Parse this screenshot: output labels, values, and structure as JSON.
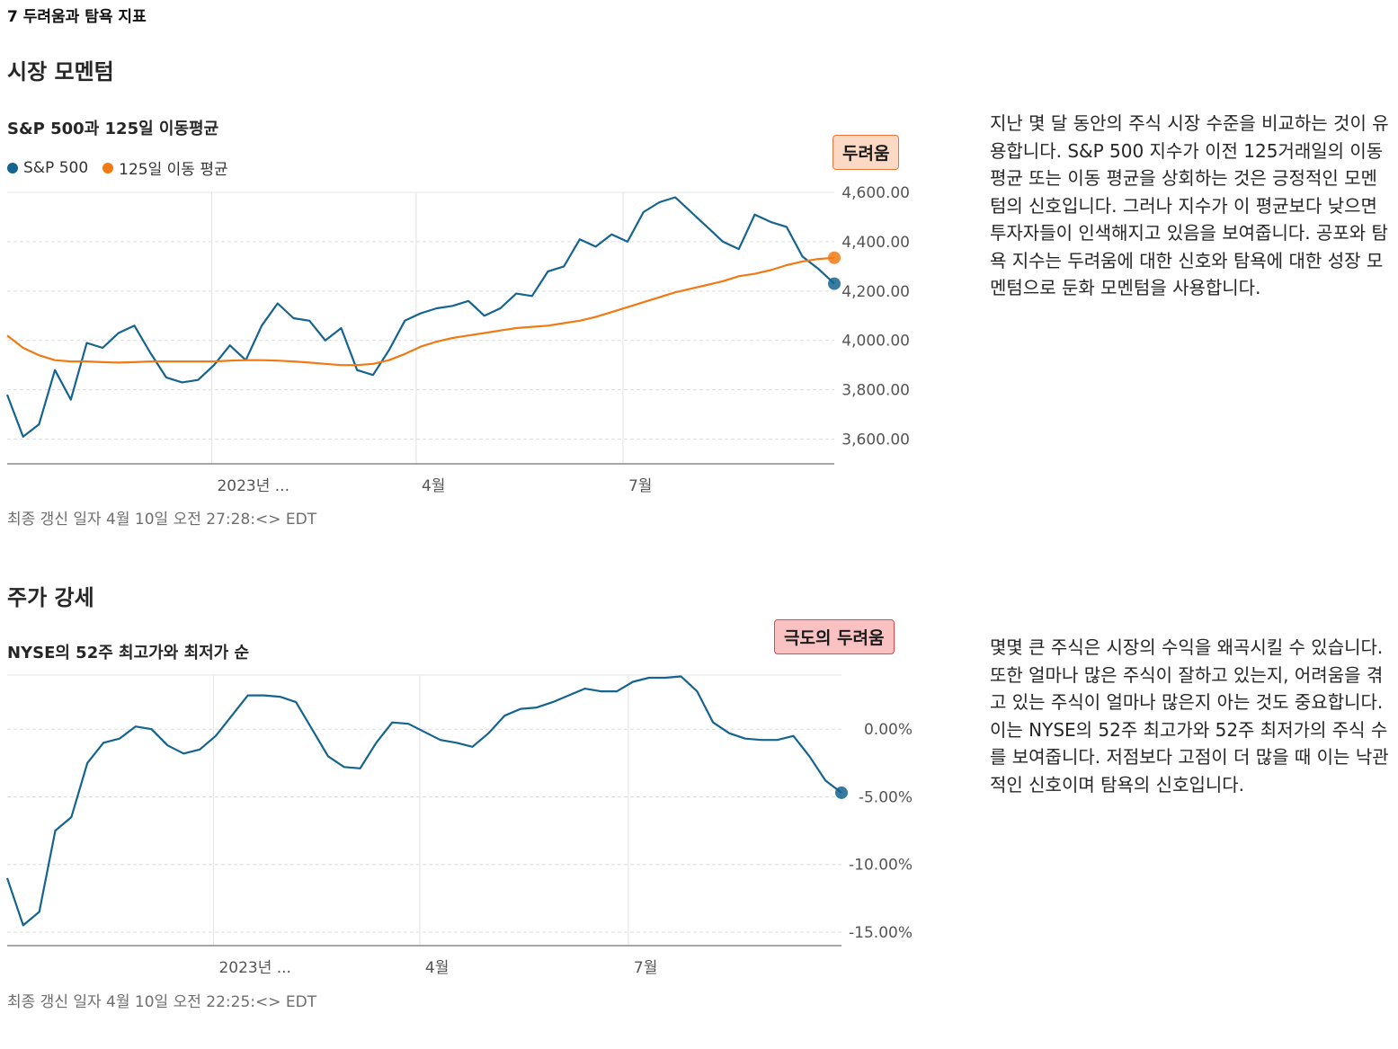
{
  "breadcrumb": "7 두려움과 탐욕 지표",
  "sections": [
    {
      "heading": "시장 모멘텀",
      "chart_title": "S&P 500과 125일 이동평균",
      "badge": {
        "label": "두려움",
        "bg": "#fbd9c4",
        "border": "#e8763a"
      },
      "legend": [
        {
          "label": "S&P 500",
          "color": "#14648f"
        },
        {
          "label": "125일 이동 평균",
          "color": "#f07a14"
        }
      ],
      "updated": "최종 갱신 일자 4월 10일 오전 27:28:<> EDT",
      "description": "지난 몇 달 동안의 주식 시장 수준을 비교하는 것이 유용합니다. S&P 500 지수가 이전 125거래일의 이동 평균 또는 이동 평균을 상회하는 것은 긍정적인 모멘텀의 신호입니다. 그러나 지수가 이 평균보다 낮으면 투자자들이 인색해지고 있음을 보여줍니다. 공포와 탐욕 지수는 두려움에 대한 신호와 탐욕에 대한 성장 모멘텀으로 둔화 모멘텀을 사용합니다."
    },
    {
      "heading": "주가 강세",
      "chart_title": "NYSE의 52주 최고가와 최저가 순",
      "badge": {
        "label": "극도의 두려움",
        "bg": "#f9c1c1",
        "border": "#e04848"
      },
      "updated": "최종 갱신 일자 4월 10일 오전 22:25:<> EDT",
      "description": "몇몇 큰 주식은 시장의 수익을 왜곡시킬 수 있습니다. 또한 얼마나 많은 주식이 잘하고 있는지, 어려움을 겪고 있는 주식이 얼마나 많은지 아는 것도 중요합니다. 이는 NYSE의 52주 최고가와 52주 최저가의 주식 수를 보여줍니다. 저점보다 고점이 더 많을 때 이는 낙관적인 신호이며 탐욕의 신호입니다."
    }
  ],
  "chart_data": [
    {
      "type": "line",
      "x": [
        "2022-10-03",
        "2022-10-10",
        "2022-10-17",
        "2022-10-24",
        "2022-10-31",
        "2022-11-07",
        "2022-11-14",
        "2022-11-21",
        "2022-11-28",
        "2022-12-05",
        "2022-12-12",
        "2022-12-19",
        "2022-12-26",
        "2023-01-02",
        "2023-01-09",
        "2023-01-16",
        "2023-01-23",
        "2023-01-30",
        "2023-02-06",
        "2023-02-13",
        "2023-02-20",
        "2023-02-27",
        "2023-03-06",
        "2023-03-13",
        "2023-03-20",
        "2023-03-27",
        "2023-04-03",
        "2023-04-10",
        "2023-04-17",
        "2023-04-24",
        "2023-05-01",
        "2023-05-08",
        "2023-05-15",
        "2023-05-22",
        "2023-05-29",
        "2023-06-05",
        "2023-06-12",
        "2023-06-19",
        "2023-06-26",
        "2023-07-03",
        "2023-07-10",
        "2023-07-17",
        "2023-07-24",
        "2023-07-31",
        "2023-08-07",
        "2023-08-14",
        "2023-08-21",
        "2023-08-28",
        "2023-09-04",
        "2023-09-11",
        "2023-09-18",
        "2023-09-25",
        "2023-10-02"
      ],
      "series": [
        {
          "name": "S&P 500",
          "color": "#14648f",
          "values": [
            3780,
            3610,
            3660,
            3880,
            3760,
            3990,
            3970,
            4030,
            4060,
            3950,
            3850,
            3830,
            3840,
            3900,
            3980,
            3920,
            4060,
            4150,
            4090,
            4080,
            4000,
            4050,
            3880,
            3860,
            3960,
            4080,
            4110,
            4130,
            4140,
            4160,
            4100,
            4130,
            4190,
            4180,
            4280,
            4300,
            4410,
            4380,
            4430,
            4400,
            4520,
            4560,
            4580,
            4520,
            4460,
            4400,
            4370,
            4510,
            4480,
            4460,
            4340,
            4290,
            4230
          ]
        },
        {
          "name": "125일 이동 평균",
          "color": "#f07a14",
          "values": [
            4020,
            3970,
            3940,
            3920,
            3915,
            3915,
            3912,
            3910,
            3912,
            3915,
            3915,
            3915,
            3915,
            3915,
            3918,
            3920,
            3920,
            3918,
            3915,
            3910,
            3905,
            3900,
            3900,
            3905,
            3920,
            3945,
            3975,
            3995,
            4010,
            4020,
            4030,
            4040,
            4050,
            4055,
            4060,
            4070,
            4080,
            4095,
            4115,
            4135,
            4155,
            4175,
            4195,
            4210,
            4225,
            4240,
            4260,
            4270,
            4285,
            4305,
            4320,
            4330,
            4335
          ]
        }
      ],
      "ylim": [
        3500,
        4600
      ],
      "yticks": [
        "4,600.00",
        "4,400.00",
        "4,200.00",
        "4,000.00",
        "3,800.00",
        "3,600.00"
      ],
      "ytick_values": [
        4600,
        4400,
        4200,
        4000,
        3800,
        3600
      ],
      "xticks": [
        "2023년 ...",
        "4월",
        "7월"
      ],
      "xtick_dates": [
        "2023-01-01",
        "2023-04-01",
        "2023-07-01"
      ],
      "grid": true
    },
    {
      "type": "line",
      "x": [
        "2022-10-03",
        "2022-10-10",
        "2022-10-17",
        "2022-10-24",
        "2022-10-31",
        "2022-11-07",
        "2022-11-14",
        "2022-11-21",
        "2022-11-28",
        "2022-12-05",
        "2022-12-12",
        "2022-12-19",
        "2022-12-26",
        "2023-01-02",
        "2023-01-09",
        "2023-01-16",
        "2023-01-23",
        "2023-01-30",
        "2023-02-06",
        "2023-02-13",
        "2023-02-20",
        "2023-02-27",
        "2023-03-06",
        "2023-03-13",
        "2023-03-20",
        "2023-03-27",
        "2023-04-03",
        "2023-04-10",
        "2023-04-17",
        "2023-04-24",
        "2023-05-01",
        "2023-05-08",
        "2023-05-15",
        "2023-05-22",
        "2023-05-29",
        "2023-06-05",
        "2023-06-12",
        "2023-06-19",
        "2023-06-26",
        "2023-07-03",
        "2023-07-10",
        "2023-07-17",
        "2023-07-24",
        "2023-07-31",
        "2023-08-07",
        "2023-08-14",
        "2023-08-21",
        "2023-08-28",
        "2023-09-04",
        "2023-09-11",
        "2023-09-18",
        "2023-09-25",
        "2023-10-02"
      ],
      "series": [
        {
          "name": "NYSE",
          "color": "#14648f",
          "values": [
            -11,
            -14.5,
            -13.5,
            -7.5,
            -6.5,
            -2.5,
            -1,
            -0.7,
            0.2,
            0,
            -1.2,
            -1.8,
            -1.5,
            -0.5,
            1,
            2.5,
            2.5,
            2.4,
            2,
            0,
            -2,
            -2.8,
            -2.9,
            -1,
            0.5,
            0.4,
            -0.2,
            -0.8,
            -1,
            -1.3,
            -0.3,
            1,
            1.5,
            1.6,
            2,
            2.5,
            3,
            2.8,
            2.8,
            3.5,
            3.8,
            3.8,
            3.9,
            2.8,
            0.5,
            -0.3,
            -0.7,
            -0.8,
            -0.8,
            -0.5,
            -2,
            -3.8,
            -4.7
          ]
        }
      ],
      "ylim": [
        -16,
        4
      ],
      "yticks": [
        "0.00%",
        "-5.00%",
        "-10.00%",
        "-15.00%"
      ],
      "ytick_values": [
        0,
        -5,
        -10,
        -15
      ],
      "xticks": [
        "2023년 ...",
        "4월",
        "7월"
      ],
      "xtick_dates": [
        "2023-01-01",
        "2023-04-01",
        "2023-07-01"
      ],
      "grid": true
    }
  ]
}
